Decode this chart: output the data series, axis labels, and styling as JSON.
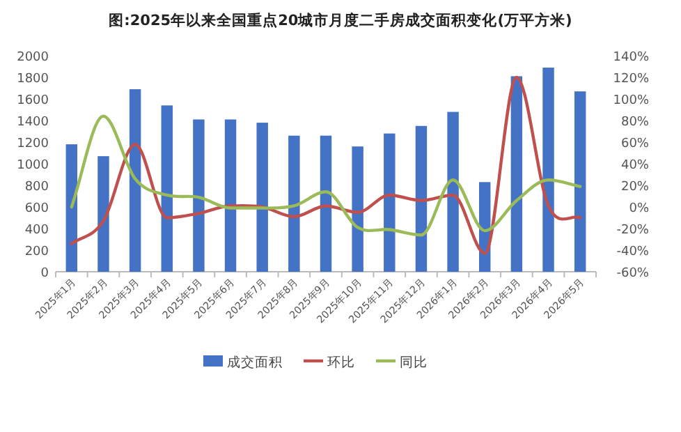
{
  "chart_data": {
    "type": "bar",
    "title": "图:2025年以来全国重点20城市月度二手房成交面积变化(万平方米)",
    "categories": [
      "2025年1月",
      "2025年2月",
      "2025年3月",
      "2025年4月",
      "2025年5月",
      "2025年6月",
      "2025年7月",
      "2025年8月",
      "2025年9月",
      "2025年10月",
      "2025年11月",
      "2025年12月",
      "2026年1月",
      "2026年2月",
      "2026年3月",
      "2026年4月",
      "2026年5月"
    ],
    "series": [
      {
        "name": "成交面积",
        "color": "#4472c4",
        "values": [
          1180,
          1070,
          1690,
          1540,
          1410,
          1410,
          1380,
          1260,
          1260,
          1160,
          1280,
          1350,
          1480,
          830,
          1810,
          1890,
          1670
        ]
      },
      {
        "name": "环比",
        "type": "line",
        "axis": "y2",
        "color": "#c0504d",
        "values": [
          -34,
          -13,
          58,
          -10,
          -6,
          1,
          0,
          -9,
          1,
          -5,
          11,
          6,
          11,
          -43,
          120,
          1,
          -10
        ]
      },
      {
        "name": "同比",
        "type": "line",
        "axis": "y2",
        "color": "#9bbb59",
        "values": [
          0,
          84,
          26,
          11,
          9,
          -1,
          -1,
          1,
          14,
          -19,
          -21,
          -26,
          25,
          -22,
          6,
          25,
          19
        ]
      }
    ],
    "ylim": [
      0,
      2000
    ],
    "yticks": [
      0,
      200,
      400,
      600,
      800,
      1000,
      1200,
      1400,
      1600,
      1800,
      2000
    ],
    "y2lim": [
      -60,
      140
    ],
    "y2ticks": [
      {
        "value": -60,
        "label": "-60%"
      },
      {
        "value": -40,
        "label": "-40%"
      },
      {
        "value": -20,
        "label": "-20%"
      },
      {
        "value": 0,
        "label": "0%"
      },
      {
        "value": 20,
        "label": "20%"
      },
      {
        "value": 40,
        "label": "40%"
      },
      {
        "value": 60,
        "label": "60%"
      },
      {
        "value": 80,
        "label": "80%"
      },
      {
        "value": 100,
        "label": "100%"
      },
      {
        "value": 120,
        "label": "120%"
      },
      {
        "value": 140,
        "label": "140%"
      }
    ],
    "legend": "bottom",
    "grid": false,
    "marker": "none",
    "line_style": "solid"
  }
}
